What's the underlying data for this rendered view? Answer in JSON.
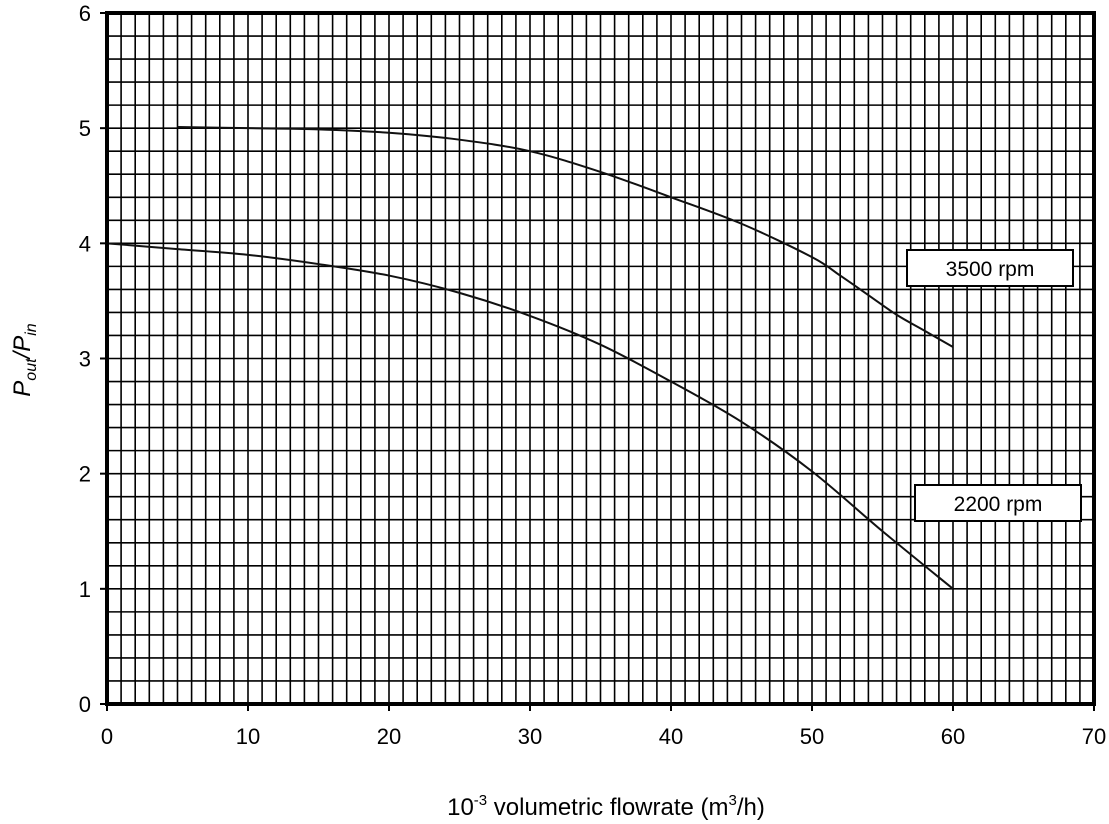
{
  "chart_data": {
    "type": "line",
    "xlabel": {
      "prefix": "10",
      "prefix_sup": "-3",
      "main": " volumetric flowrate (m",
      "unit_sup": "3",
      "suffix": "/h)"
    },
    "ylabel": {
      "p1": "P",
      "p1_sub": "out",
      "slash": "/P",
      "p2_sub": "in"
    },
    "xlim": [
      0,
      70
    ],
    "ylim": [
      0,
      6
    ],
    "x_ticks": [
      0,
      10,
      20,
      30,
      40,
      50,
      60,
      70
    ],
    "y_ticks": [
      0,
      1,
      2,
      3,
      4,
      5,
      6
    ],
    "grid": true,
    "grid_minor_x": 1,
    "grid_minor_y": 0.2,
    "series": [
      {
        "name": "3500 rpm",
        "x": [
          5,
          10,
          15,
          20,
          25,
          30,
          35,
          40,
          45,
          50,
          52,
          54,
          56,
          58,
          60
        ],
        "y": [
          5.01,
          5.0,
          4.99,
          4.96,
          4.9,
          4.8,
          4.62,
          4.4,
          4.17,
          3.88,
          3.72,
          3.55,
          3.38,
          3.24,
          3.1
        ]
      },
      {
        "name": "2200 rpm",
        "x": [
          0,
          5,
          10,
          15,
          20,
          25,
          30,
          35,
          40,
          45,
          50,
          55,
          60
        ],
        "y": [
          4.0,
          3.95,
          3.9,
          3.82,
          3.72,
          3.57,
          3.37,
          3.12,
          2.8,
          2.45,
          2.02,
          1.5,
          1.0
        ]
      }
    ],
    "labels": [
      "3500 rpm",
      "2200 rpm"
    ]
  }
}
